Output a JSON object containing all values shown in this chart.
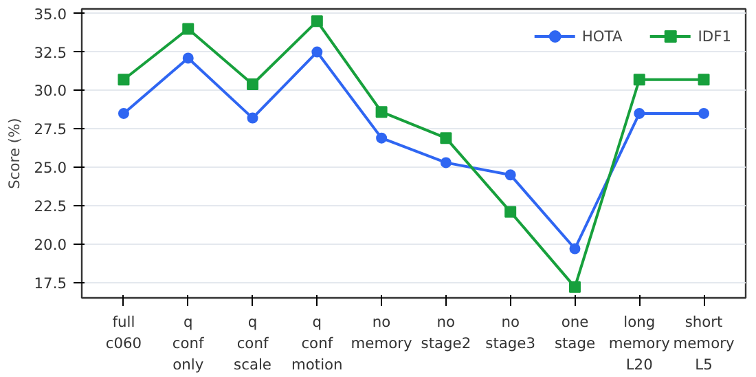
{
  "chart_data": {
    "type": "line",
    "ylabel": "Score (%)",
    "categories": [
      "full\nc060",
      "q\nconf\nonly",
      "q\nconf\nscale",
      "q\nconf\nmotion",
      "no\nmemory",
      "no\nstage2",
      "no\nstage3",
      "one\nstage",
      "long\nmemory\nL20",
      "short\nmemory\nL5"
    ],
    "series": [
      {
        "name": "HOTA",
        "color": "#2f66f2",
        "marker": "circle",
        "values": [
          28.5,
          32.1,
          28.2,
          32.5,
          26.9,
          25.3,
          24.5,
          19.7,
          28.5,
          28.5
        ]
      },
      {
        "name": "IDF1",
        "color": "#17a03c",
        "marker": "square",
        "values": [
          30.7,
          34.0,
          30.4,
          34.5,
          28.6,
          26.9,
          22.1,
          17.2,
          30.7,
          30.7
        ]
      }
    ],
    "ylim": [
      16.5,
      35.3
    ],
    "yticks": [
      17.5,
      {
        "value": 20,
        "label": "20.0"
      },
      22.5,
      {
        "value": 25,
        "label": "25.0"
      },
      27.5,
      {
        "value": 30,
        "label": "30.0"
      },
      32.5,
      {
        "value": 35,
        "label": "35.0"
      }
    ],
    "grid": "y",
    "legend": "top right"
  }
}
